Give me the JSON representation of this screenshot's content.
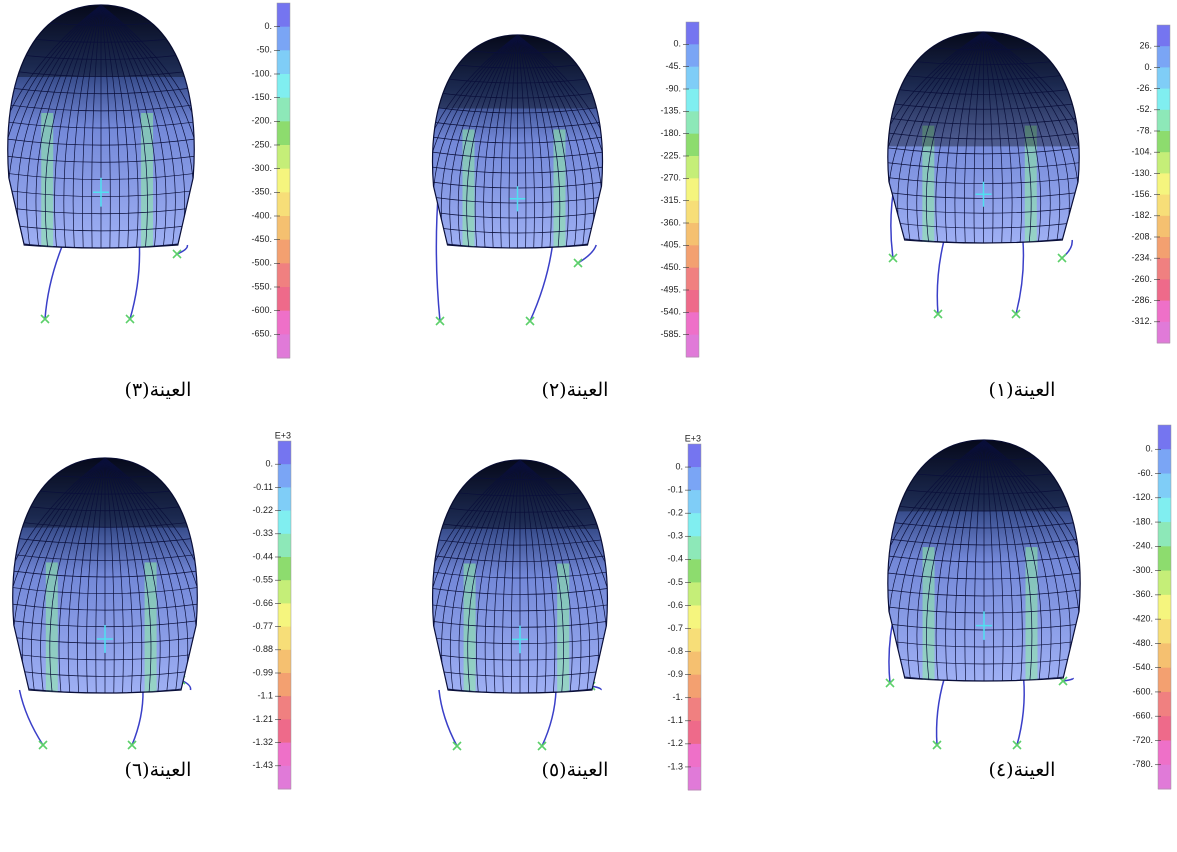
{
  "panels": [
    {
      "caption": "العينة(١)",
      "scale": [
        "26.",
        "0.",
        "-26.",
        "-52.",
        "-78.",
        "-104.",
        "-130.",
        "-156.",
        "-182.",
        "-208.",
        "-234.",
        "-260.",
        "-286.",
        "-312."
      ]
    },
    {
      "caption": "العينة(٢)",
      "scale": [
        "0.",
        "-45.",
        "-90.",
        "-135.",
        "-180.",
        "-225.",
        "-270.",
        "-315.",
        "-360.",
        "-405.",
        "-450.",
        "-495.",
        "-540.",
        "-585."
      ]
    },
    {
      "caption": "العينة(٣)",
      "scale": [
        "0.",
        "-50.",
        "-100.",
        "-150.",
        "-200.",
        "-250.",
        "-300.",
        "-350.",
        "-400.",
        "-450.",
        "-500.",
        "-550.",
        "-600.",
        "-650."
      ]
    },
    {
      "caption": "العينة(٤)",
      "scale": [
        "0.",
        "-60.",
        "-120.",
        "-180.",
        "-240.",
        "-300.",
        "-360.",
        "-420.",
        "-480.",
        "-540.",
        "-600.",
        "-660.",
        "-720.",
        "-780."
      ]
    },
    {
      "caption": "العينة(٥)",
      "scale_header": "E+3",
      "scale": [
        "0.",
        "-0.1",
        "-0.2",
        "-0.3",
        "-0.4",
        "-0.5",
        "-0.6",
        "-0.7",
        "-0.8",
        "-0.9",
        "-1.",
        "-1.1",
        "-1.2",
        "-1.3"
      ]
    },
    {
      "caption": "العينة(٦)",
      "scale_header": "E+3",
      "scale": [
        "0.",
        "-0.11",
        "-0.22",
        "-0.33",
        "-0.44",
        "-0.55",
        "-0.66",
        "-0.77",
        "-0.88",
        "-0.99",
        "-1.1",
        "-1.21",
        "-1.32",
        "-1.43"
      ]
    }
  ]
}
